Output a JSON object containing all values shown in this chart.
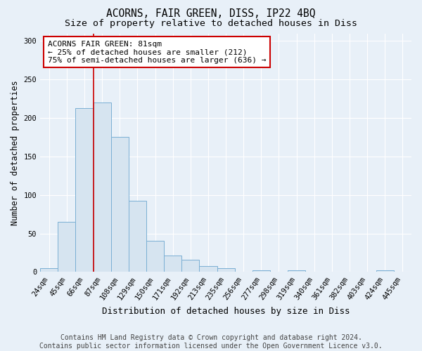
{
  "title": "ACORNS, FAIR GREEN, DISS, IP22 4BQ",
  "subtitle": "Size of property relative to detached houses in Diss",
  "xlabel": "Distribution of detached houses by size in Diss",
  "ylabel": "Number of detached properties",
  "categories": [
    "24sqm",
    "45sqm",
    "66sqm",
    "87sqm",
    "108sqm",
    "129sqm",
    "150sqm",
    "171sqm",
    "192sqm",
    "213sqm",
    "235sqm",
    "256sqm",
    "277sqm",
    "298sqm",
    "319sqm",
    "340sqm",
    "361sqm",
    "382sqm",
    "403sqm",
    "424sqm",
    "445sqm"
  ],
  "values": [
    5,
    65,
    213,
    220,
    175,
    92,
    40,
    21,
    16,
    8,
    5,
    0,
    2,
    0,
    2,
    0,
    0,
    0,
    0,
    2,
    0
  ],
  "bar_color": "#d6e4f0",
  "bar_edge_color": "#7aafd4",
  "red_line_index": 3,
  "red_line_color": "#cc0000",
  "annotation_line1": "ACORNS FAIR GREEN: 81sqm",
  "annotation_line2": "← 25% of detached houses are smaller (212)",
  "annotation_line3": "75% of semi-detached houses are larger (636) →",
  "annotation_box_facecolor": "#ffffff",
  "annotation_box_edgecolor": "#cc0000",
  "footer_line1": "Contains HM Land Registry data © Crown copyright and database right 2024.",
  "footer_line2": "Contains public sector information licensed under the Open Government Licence v3.0.",
  "plot_bg_color": "#e8f0f8",
  "fig_bg_color": "#e8f0f8",
  "ylim": [
    0,
    310
  ],
  "yticks": [
    0,
    50,
    100,
    150,
    200,
    250,
    300
  ],
  "grid_color": "#ffffff",
  "title_fontsize": 10.5,
  "subtitle_fontsize": 9.5,
  "ylabel_fontsize": 8.5,
  "xlabel_fontsize": 9,
  "tick_fontsize": 7.5,
  "annotation_fontsize": 8,
  "footer_fontsize": 7
}
